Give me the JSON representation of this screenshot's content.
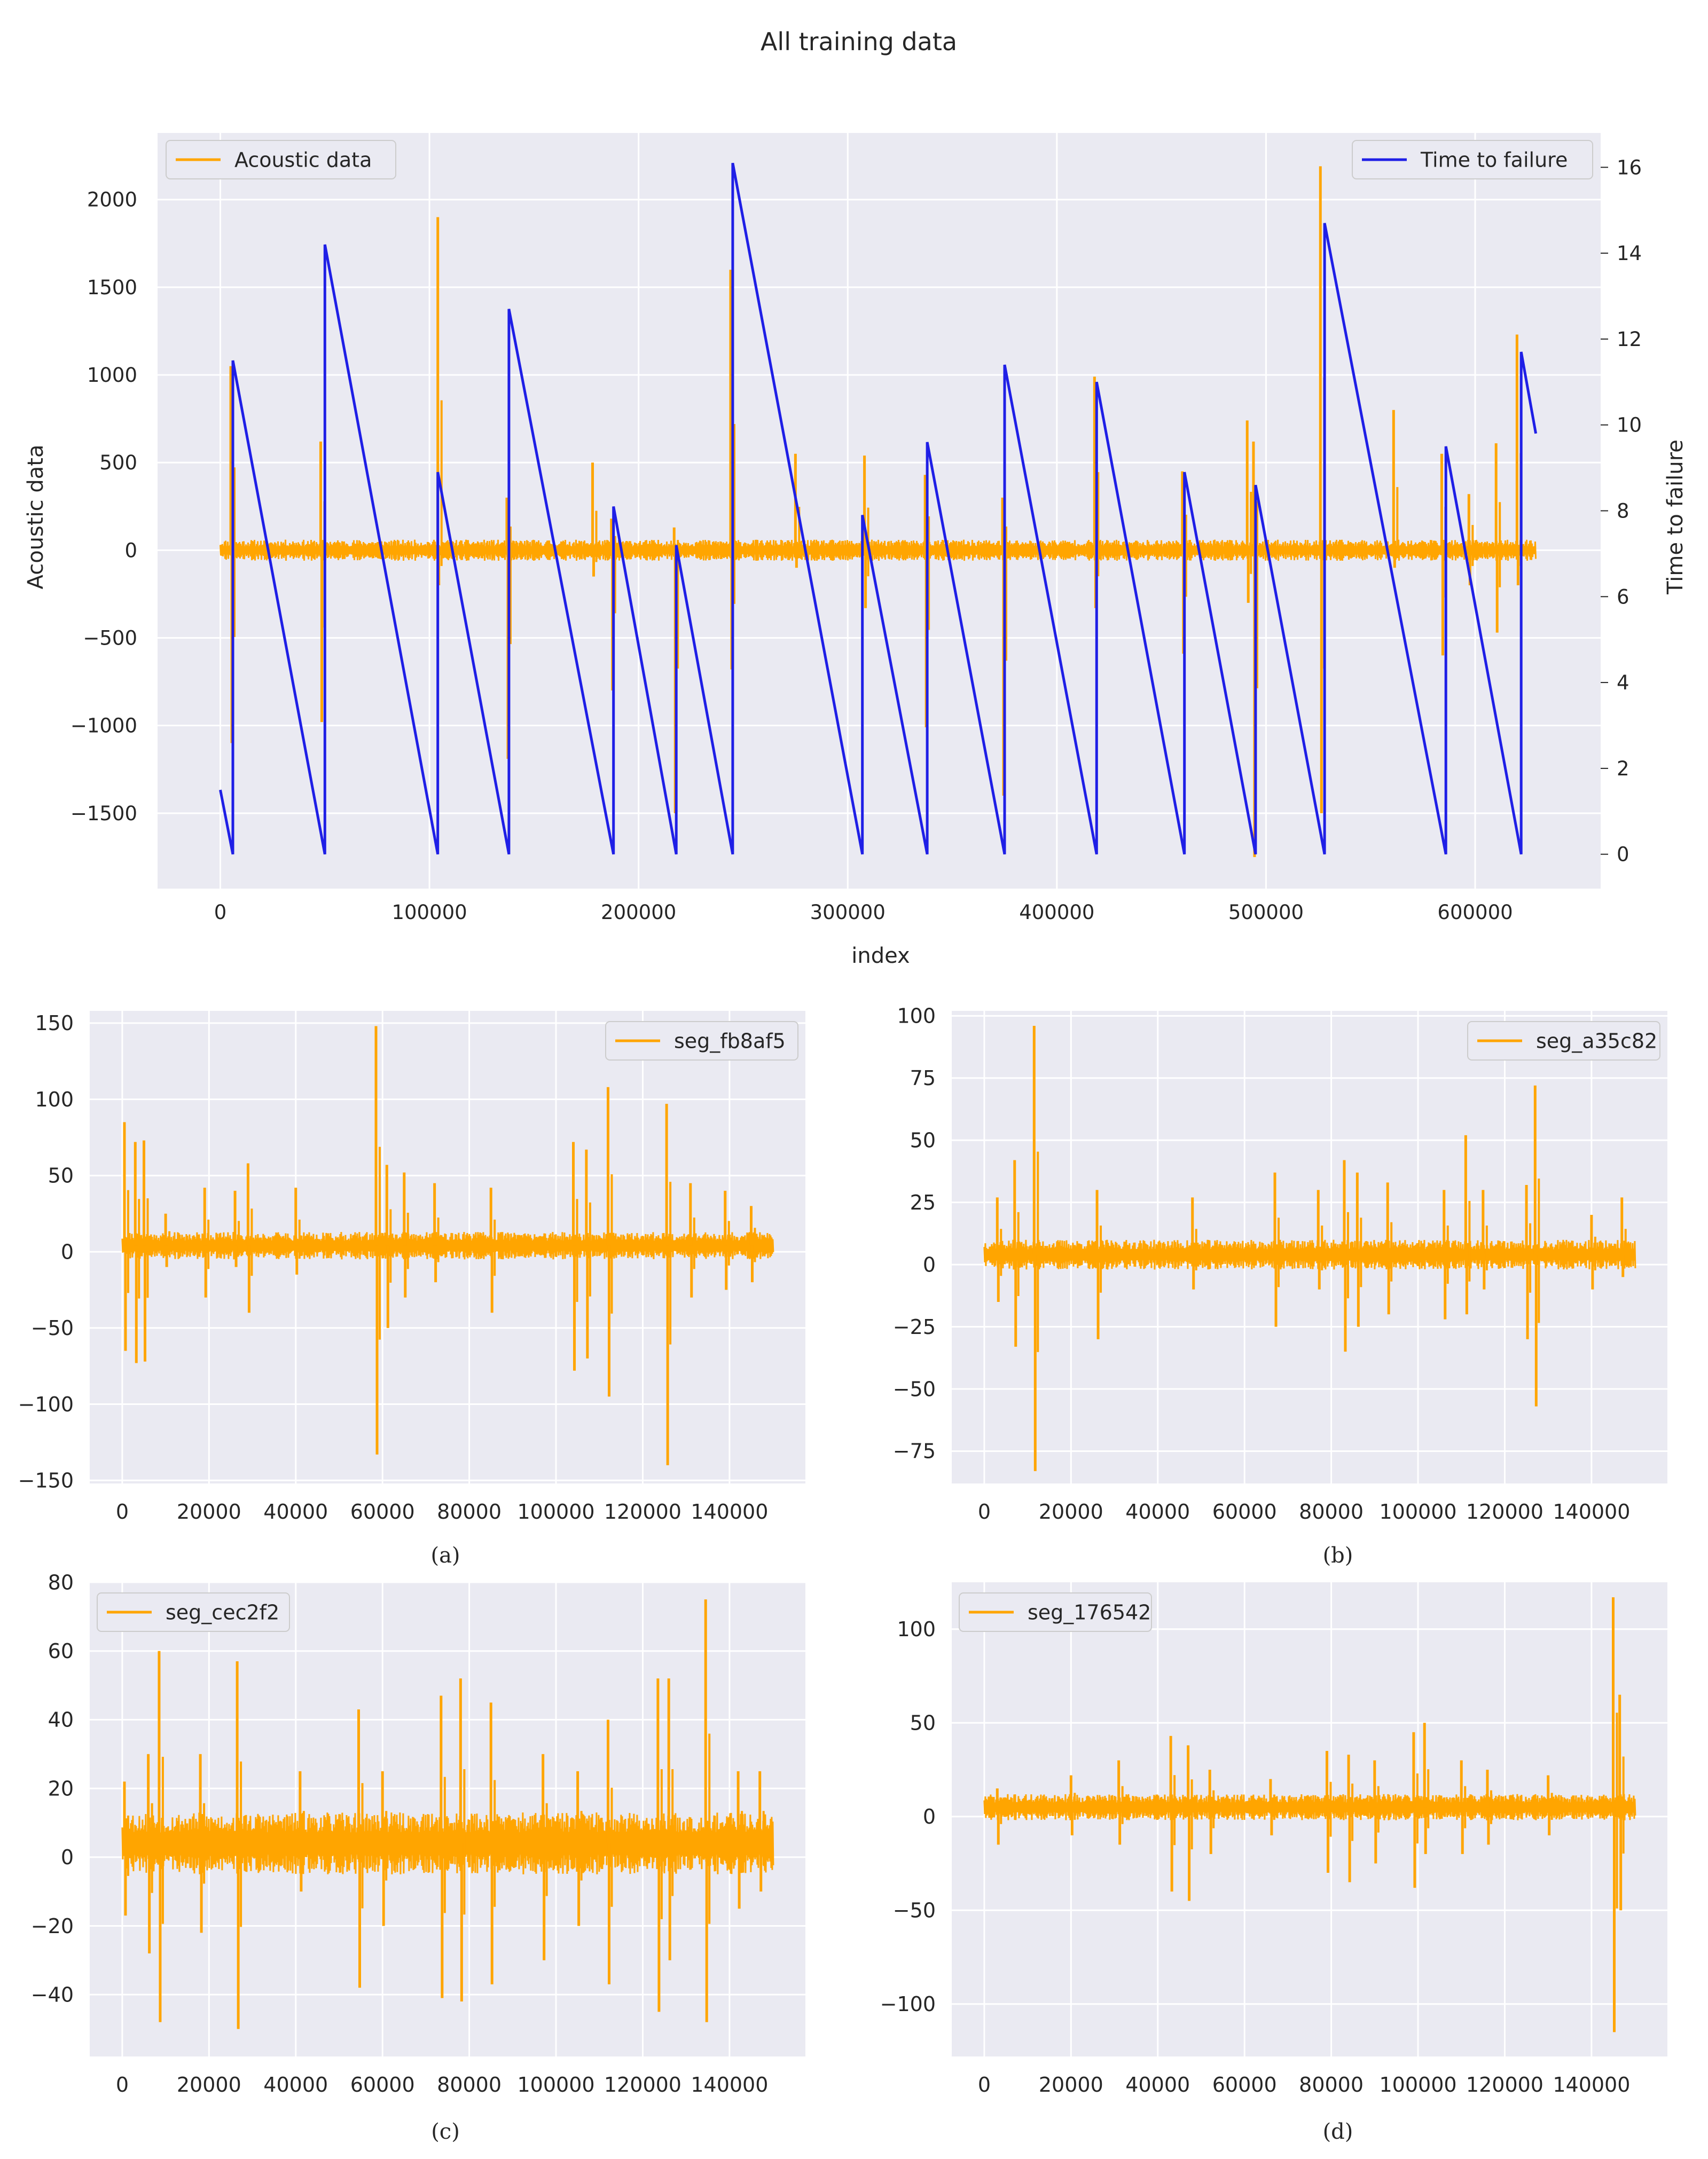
{
  "figure_title": "All training data",
  "colors": {
    "acoustic": "#FFA500",
    "ttf": "#1f1fe6",
    "panel_bg": "#EAEAF2",
    "grid": "#FFFFFF",
    "text": "#262626"
  },
  "chart_data": [
    {
      "type": "line",
      "title": "All training data",
      "xlabel": "index",
      "ylabel": "Acoustic data",
      "y2label": "Time to failure",
      "xlim": [
        -30000,
        660000
      ],
      "ylim": [
        -1930,
        2380
      ],
      "y2lim": [
        -0.8,
        16.8
      ],
      "xticks": [
        0,
        100000,
        200000,
        300000,
        400000,
        500000,
        600000
      ],
      "xtick_labels": [
        "0",
        "100000",
        "200000",
        "300000",
        "400000",
        "500000",
        "600000"
      ],
      "yticks": [
        -1500,
        -1000,
        -500,
        0,
        500,
        1000,
        1500,
        2000
      ],
      "ytick_labels": [
        "−1500",
        "−1000",
        "−500",
        "0",
        "500",
        "1000",
        "1500",
        "2000"
      ],
      "y2ticks": [
        0,
        2,
        4,
        6,
        8,
        10,
        12,
        14,
        16
      ],
      "y2tick_labels": [
        "0",
        "2",
        "4",
        "6",
        "8",
        "10",
        "12",
        "14",
        "16"
      ],
      "grid": true,
      "legend_left": "top-left",
      "legend_right": "top-right",
      "series": [
        {
          "name": "Acoustic data",
          "axis": "left",
          "noise_amp": 60,
          "x_end": 629000,
          "spikes": [
            [
              5000,
              1050,
              -1100
            ],
            [
              48000,
              620,
              -980
            ],
            [
              104000,
              1900,
              -200
            ],
            [
              137000,
              300,
              -1190
            ],
            [
              178000,
              500,
              -150
            ],
            [
              187000,
              180,
              -800
            ],
            [
              217000,
              130,
              -1500
            ],
            [
              244000,
              1600,
              -680
            ],
            [
              275000,
              550,
              -100
            ],
            [
              308000,
              540,
              -330
            ],
            [
              337000,
              430,
              -1010
            ],
            [
              374000,
              300,
              -1400
            ],
            [
              418000,
              990,
              -330
            ],
            [
              460000,
              450,
              -590
            ],
            [
              491000,
              740,
              -300
            ],
            [
              494000,
              620,
              -1750
            ],
            [
              526000,
              2190,
              -1500
            ],
            [
              561000,
              800,
              -100
            ],
            [
              584000,
              550,
              -600
            ],
            [
              597000,
              320,
              -200
            ],
            [
              610000,
              610,
              -470
            ],
            [
              620000,
              1230,
              -200
            ]
          ]
        },
        {
          "name": "Time to failure",
          "axis": "right",
          "points": [
            [
              0,
              1.5
            ],
            [
              6000,
              0.0
            ],
            [
              6000,
              11.5
            ],
            [
              50000,
              0.0
            ],
            [
              50000,
              14.2
            ],
            [
              104000,
              0.0
            ],
            [
              104000,
              8.9
            ],
            [
              138000,
              0.0
            ],
            [
              138000,
              12.7
            ],
            [
              188000,
              0.0
            ],
            [
              188000,
              8.1
            ],
            [
              218000,
              0.0
            ],
            [
              218000,
              7.2
            ],
            [
              245000,
              0.0
            ],
            [
              245000,
              16.1
            ],
            [
              307000,
              0.0
            ],
            [
              307000,
              7.9
            ],
            [
              338000,
              0.0
            ],
            [
              338000,
              9.6
            ],
            [
              375000,
              0.0
            ],
            [
              375000,
              11.4
            ],
            [
              419000,
              0.0
            ],
            [
              419000,
              11.0
            ],
            [
              461000,
              0.0
            ],
            [
              461000,
              8.9
            ],
            [
              495000,
              0.0
            ],
            [
              495000,
              8.6
            ],
            [
              528000,
              0.0
            ],
            [
              528000,
              14.7
            ],
            [
              586000,
              0.0
            ],
            [
              586000,
              9.5
            ],
            [
              622000,
              0.0
            ],
            [
              622000,
              11.7
            ],
            [
              629000,
              9.8
            ]
          ]
        }
      ]
    },
    {
      "type": "line",
      "caption": "(a)",
      "legend": "seg_fb8af5",
      "legend_pos": "top-right",
      "xlim": [
        -7500,
        157500
      ],
      "ylim": [
        -152,
        158
      ],
      "xticks": [
        0,
        20000,
        40000,
        60000,
        80000,
        100000,
        120000,
        140000
      ],
      "xtick_labels": [
        "0",
        "20000",
        "40000",
        "60000",
        "80000",
        "100000",
        "120000",
        "140000"
      ],
      "yticks": [
        -150,
        -100,
        -50,
        0,
        50,
        100,
        150
      ],
      "ytick_labels": [
        "−150",
        "−100",
        "−50",
        "0",
        "50",
        "100",
        "150"
      ],
      "grid": true,
      "series": [
        {
          "name": "seg_fb8af5",
          "center": 4,
          "noise_amp": 9,
          "x_end": 150000,
          "spikes": [
            [
              500,
              85,
              -65
            ],
            [
              3000,
              72,
              -73
            ],
            [
              5000,
              73,
              -72
            ],
            [
              10000,
              25,
              -10
            ],
            [
              19000,
              42,
              -30
            ],
            [
              26000,
              40,
              -10
            ],
            [
              29000,
              58,
              -40
            ],
            [
              40000,
              42,
              -15
            ],
            [
              58500,
              148,
              -133
            ],
            [
              61000,
              57,
              -50
            ],
            [
              65000,
              52,
              -30
            ],
            [
              72000,
              45,
              -20
            ],
            [
              85000,
              42,
              -40
            ],
            [
              104000,
              72,
              -78
            ],
            [
              107000,
              67,
              -70
            ],
            [
              112000,
              108,
              -95
            ],
            [
              125500,
              97,
              -140
            ],
            [
              131000,
              45,
              -30
            ],
            [
              139000,
              40,
              -25
            ],
            [
              145000,
              30,
              -20
            ]
          ]
        }
      ]
    },
    {
      "type": "line",
      "caption": "(b)",
      "legend": "seg_a35c82",
      "legend_pos": "top-right",
      "xlim": [
        -7500,
        157500
      ],
      "ylim": [
        -88,
        102
      ],
      "xticks": [
        0,
        20000,
        40000,
        60000,
        80000,
        100000,
        120000,
        140000
      ],
      "xtick_labels": [
        "0",
        "20000",
        "40000",
        "60000",
        "80000",
        "100000",
        "120000",
        "140000"
      ],
      "yticks": [
        -75,
        -50,
        -25,
        0,
        25,
        50,
        75,
        100
      ],
      "ytick_labels": [
        "−75",
        "−50",
        "−25",
        "0",
        "25",
        "50",
        "75",
        "100"
      ],
      "grid": true,
      "series": [
        {
          "name": "seg_a35c82",
          "center": 4,
          "noise_amp": 6,
          "x_end": 150000,
          "spikes": [
            [
              3000,
              27,
              -15
            ],
            [
              7000,
              42,
              -33
            ],
            [
              11500,
              96,
              -83
            ],
            [
              26000,
              30,
              -30
            ],
            [
              48000,
              27,
              -10
            ],
            [
              67000,
              37,
              -25
            ],
            [
              77000,
              30,
              -10
            ],
            [
              83000,
              42,
              -35
            ],
            [
              86000,
              37,
              -25
            ],
            [
              93000,
              33,
              -20
            ],
            [
              106000,
              30,
              -22
            ],
            [
              111000,
              52,
              -20
            ],
            [
              115000,
              30,
              -10
            ],
            [
              125000,
              32,
              -30
            ],
            [
              127000,
              72,
              -57
            ],
            [
              140000,
              20,
              -10
            ],
            [
              147000,
              27,
              -5
            ]
          ]
        }
      ]
    },
    {
      "type": "line",
      "caption": "(c)",
      "legend": "seg_cec2f2",
      "legend_pos": "top-left",
      "xlim": [
        -7500,
        157500
      ],
      "ylim": [
        -58,
        80
      ],
      "xticks": [
        0,
        20000,
        40000,
        60000,
        80000,
        100000,
        120000,
        140000
      ],
      "xtick_labels": [
        "0",
        "20000",
        "40000",
        "60000",
        "80000",
        "100000",
        "120000",
        "140000"
      ],
      "yticks": [
        -40,
        -20,
        0,
        20,
        40,
        60,
        80
      ],
      "ytick_labels": [
        "−40",
        "−20",
        "0",
        "20",
        "40",
        "60",
        "80"
      ],
      "grid": true,
      "series": [
        {
          "name": "seg_cec2f2",
          "center": 4,
          "noise_amp": 9,
          "x_end": 150000,
          "spikes": [
            [
              500,
              22,
              -17
            ],
            [
              6000,
              30,
              -28
            ],
            [
              8500,
              60,
              -48
            ],
            [
              18000,
              30,
              -22
            ],
            [
              26500,
              57,
              -50
            ],
            [
              41000,
              25,
              -10
            ],
            [
              54500,
              43,
              -38
            ],
            [
              60000,
              25,
              -20
            ],
            [
              73500,
              47,
              -41
            ],
            [
              78000,
              52,
              -42
            ],
            [
              85000,
              45,
              -37
            ],
            [
              97000,
              30,
              -30
            ],
            [
              105000,
              25,
              -20
            ],
            [
              112000,
              40,
              -37
            ],
            [
              123500,
              52,
              -45
            ],
            [
              126000,
              52,
              -30
            ],
            [
              134500,
              75,
              -48
            ],
            [
              142000,
              25,
              -15
            ],
            [
              147000,
              25,
              -10
            ]
          ]
        }
      ]
    },
    {
      "type": "line",
      "caption": "(d)",
      "legend": "seg_176542",
      "legend_pos": "top-left",
      "xlim": [
        -7500,
        157500
      ],
      "ylim": [
        -128,
        125
      ],
      "xticks": [
        0,
        20000,
        40000,
        60000,
        80000,
        100000,
        120000,
        140000
      ],
      "xtick_labels": [
        "0",
        "20000",
        "40000",
        "60000",
        "80000",
        "100000",
        "120000",
        "140000"
      ],
      "yticks": [
        -100,
        -50,
        0,
        50,
        100
      ],
      "ytick_labels": [
        "−100",
        "−50",
        "0",
        "50",
        "100"
      ],
      "grid": true,
      "series": [
        {
          "name": "seg_176542",
          "center": 5,
          "noise_amp": 7,
          "x_end": 150000,
          "spikes": [
            [
              3000,
              15,
              -15
            ],
            [
              20000,
              22,
              -10
            ],
            [
              31000,
              30,
              -15
            ],
            [
              43000,
              43,
              -40
            ],
            [
              47000,
              38,
              -45
            ],
            [
              52000,
              25,
              -20
            ],
            [
              66000,
              20,
              -10
            ],
            [
              79000,
              35,
              -30
            ],
            [
              84000,
              33,
              -35
            ],
            [
              90000,
              30,
              -25
            ],
            [
              99000,
              45,
              -38
            ],
            [
              101500,
              50,
              -20
            ],
            [
              110000,
              30,
              -20
            ],
            [
              116000,
              25,
              -15
            ],
            [
              130000,
              22,
              -10
            ],
            [
              145000,
              117,
              -115
            ],
            [
              146500,
              65,
              -50
            ]
          ]
        }
      ]
    }
  ]
}
